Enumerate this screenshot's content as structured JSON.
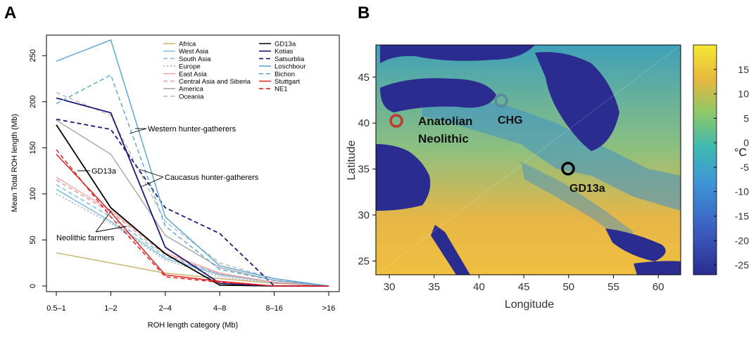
{
  "panel_a": {
    "letter": "A",
    "ylabel": "Mean Total ROH length (Mb)",
    "xlabel": "ROH length category (Mb)",
    "annotations": {
      "whg": "Western hunter-gatherers",
      "chg": "Caucasus hunter-gatherers",
      "gd13a": "GD13a",
      "neo": "Neolithic farmers"
    }
  },
  "panel_b": {
    "letter": "B",
    "xlabel": "Longitude",
    "ylabel": "Latitude",
    "colorbar_label": "°C",
    "sites": {
      "anatolian_1": "Anatolian",
      "anatolian_2": "Neolithic",
      "chg": "CHG",
      "gd13a": "GD13a"
    },
    "site_colors": {
      "anatolian": "#c0392b",
      "chg": "#5a8a9a",
      "gd13a": "#000000"
    }
  },
  "chart_data": [
    {
      "type": "line",
      "xlabel": "ROH length category (Mb)",
      "ylabel": "Mean Total ROH length (Mb)",
      "categories": [
        "0.5–1",
        "1–2",
        "2–4",
        "4–8",
        "8–16",
        ">16"
      ],
      "ylim": [
        0,
        270
      ],
      "yticks": [
        0,
        50,
        100,
        150,
        200,
        250
      ],
      "legend_position": "top-right",
      "series": [
        {
          "name": "Africa",
          "color": "#c8b46e",
          "dash": "solid",
          "values": [
            36,
            25,
            14,
            8,
            3,
            0
          ]
        },
        {
          "name": "West Asia",
          "color": "#7fbfdf",
          "dash": "solid",
          "values": [
            105,
            70,
            30,
            12,
            4,
            0
          ]
        },
        {
          "name": "South Asia",
          "color": "#7fbfdf",
          "dash": "dashed",
          "values": [
            110,
            75,
            32,
            13,
            4,
            0
          ]
        },
        {
          "name": "Europe",
          "color": "#aaaaaa",
          "dash": "dotted",
          "values": [
            100,
            68,
            28,
            10,
            3,
            0
          ]
        },
        {
          "name": "East Asia",
          "color": "#f2aaaa",
          "dash": "solid",
          "values": [
            118,
            82,
            36,
            14,
            4,
            0
          ]
        },
        {
          "name": "Central Asia and Siberia",
          "color": "#d9a0a0",
          "dash": "dashed",
          "values": [
            115,
            80,
            34,
            13,
            4,
            0
          ]
        },
        {
          "name": "America",
          "color": "#aaaaaa",
          "dash": "solid",
          "values": [
            180,
            143,
            55,
            20,
            6,
            0
          ]
        },
        {
          "name": "Oceania",
          "color": "#bbbbbb",
          "dash": "dashed",
          "values": [
            210,
            185,
            70,
            25,
            8,
            0
          ]
        },
        {
          "name": "GD13a",
          "color": "#000000",
          "dash": "solid",
          "values": [
            175,
            85,
            35,
            1,
            0,
            0
          ]
        },
        {
          "name": "Kotias",
          "color": "#1a1a7a",
          "dash": "solid",
          "values": [
            204,
            188,
            42,
            3,
            0,
            0
          ]
        },
        {
          "name": "Satsurblia",
          "color": "#1a1a7a",
          "dash": "dashed",
          "values": [
            181,
            170,
            85,
            57,
            0,
            0
          ]
        },
        {
          "name": "Loschbour",
          "color": "#5fa8d3",
          "dash": "solid",
          "values": [
            244,
            267,
            75,
            22,
            8,
            0
          ]
        },
        {
          "name": "Bichon",
          "color": "#5fa8d3",
          "dash": "dashed",
          "values": [
            198,
            229,
            65,
            18,
            6,
            0
          ]
        },
        {
          "name": "Stuttgart",
          "color": "#e02020",
          "dash": "solid",
          "values": [
            143,
            80,
            12,
            5,
            0,
            0
          ]
        },
        {
          "name": "NE1",
          "color": "#e02020",
          "dash": "dashed",
          "values": [
            148,
            75,
            10,
            4,
            0,
            0
          ]
        }
      ]
    },
    {
      "type": "heatmap",
      "xlabel": "Longitude",
      "ylabel": "Latitude",
      "xlim": [
        28.5,
        62.5
      ],
      "ylim": [
        23.5,
        48.5
      ],
      "xticks": [
        30,
        35,
        40,
        45,
        50,
        55,
        60
      ],
      "yticks": [
        25,
        30,
        35,
        40,
        45
      ],
      "colorbar": {
        "label": "°C",
        "range": [
          -27,
          20
        ],
        "ticks": [
          15,
          10,
          5,
          0,
          -5,
          -10,
          -15,
          -20,
          -25
        ]
      },
      "sites": [
        {
          "name": "Anatolian Neolithic",
          "lon": 31,
          "lat": 40.3
        },
        {
          "name": "CHG",
          "lon": 42.6,
          "lat": 42.5
        },
        {
          "name": "GD13a",
          "lon": 50,
          "lat": 35
        }
      ]
    }
  ]
}
